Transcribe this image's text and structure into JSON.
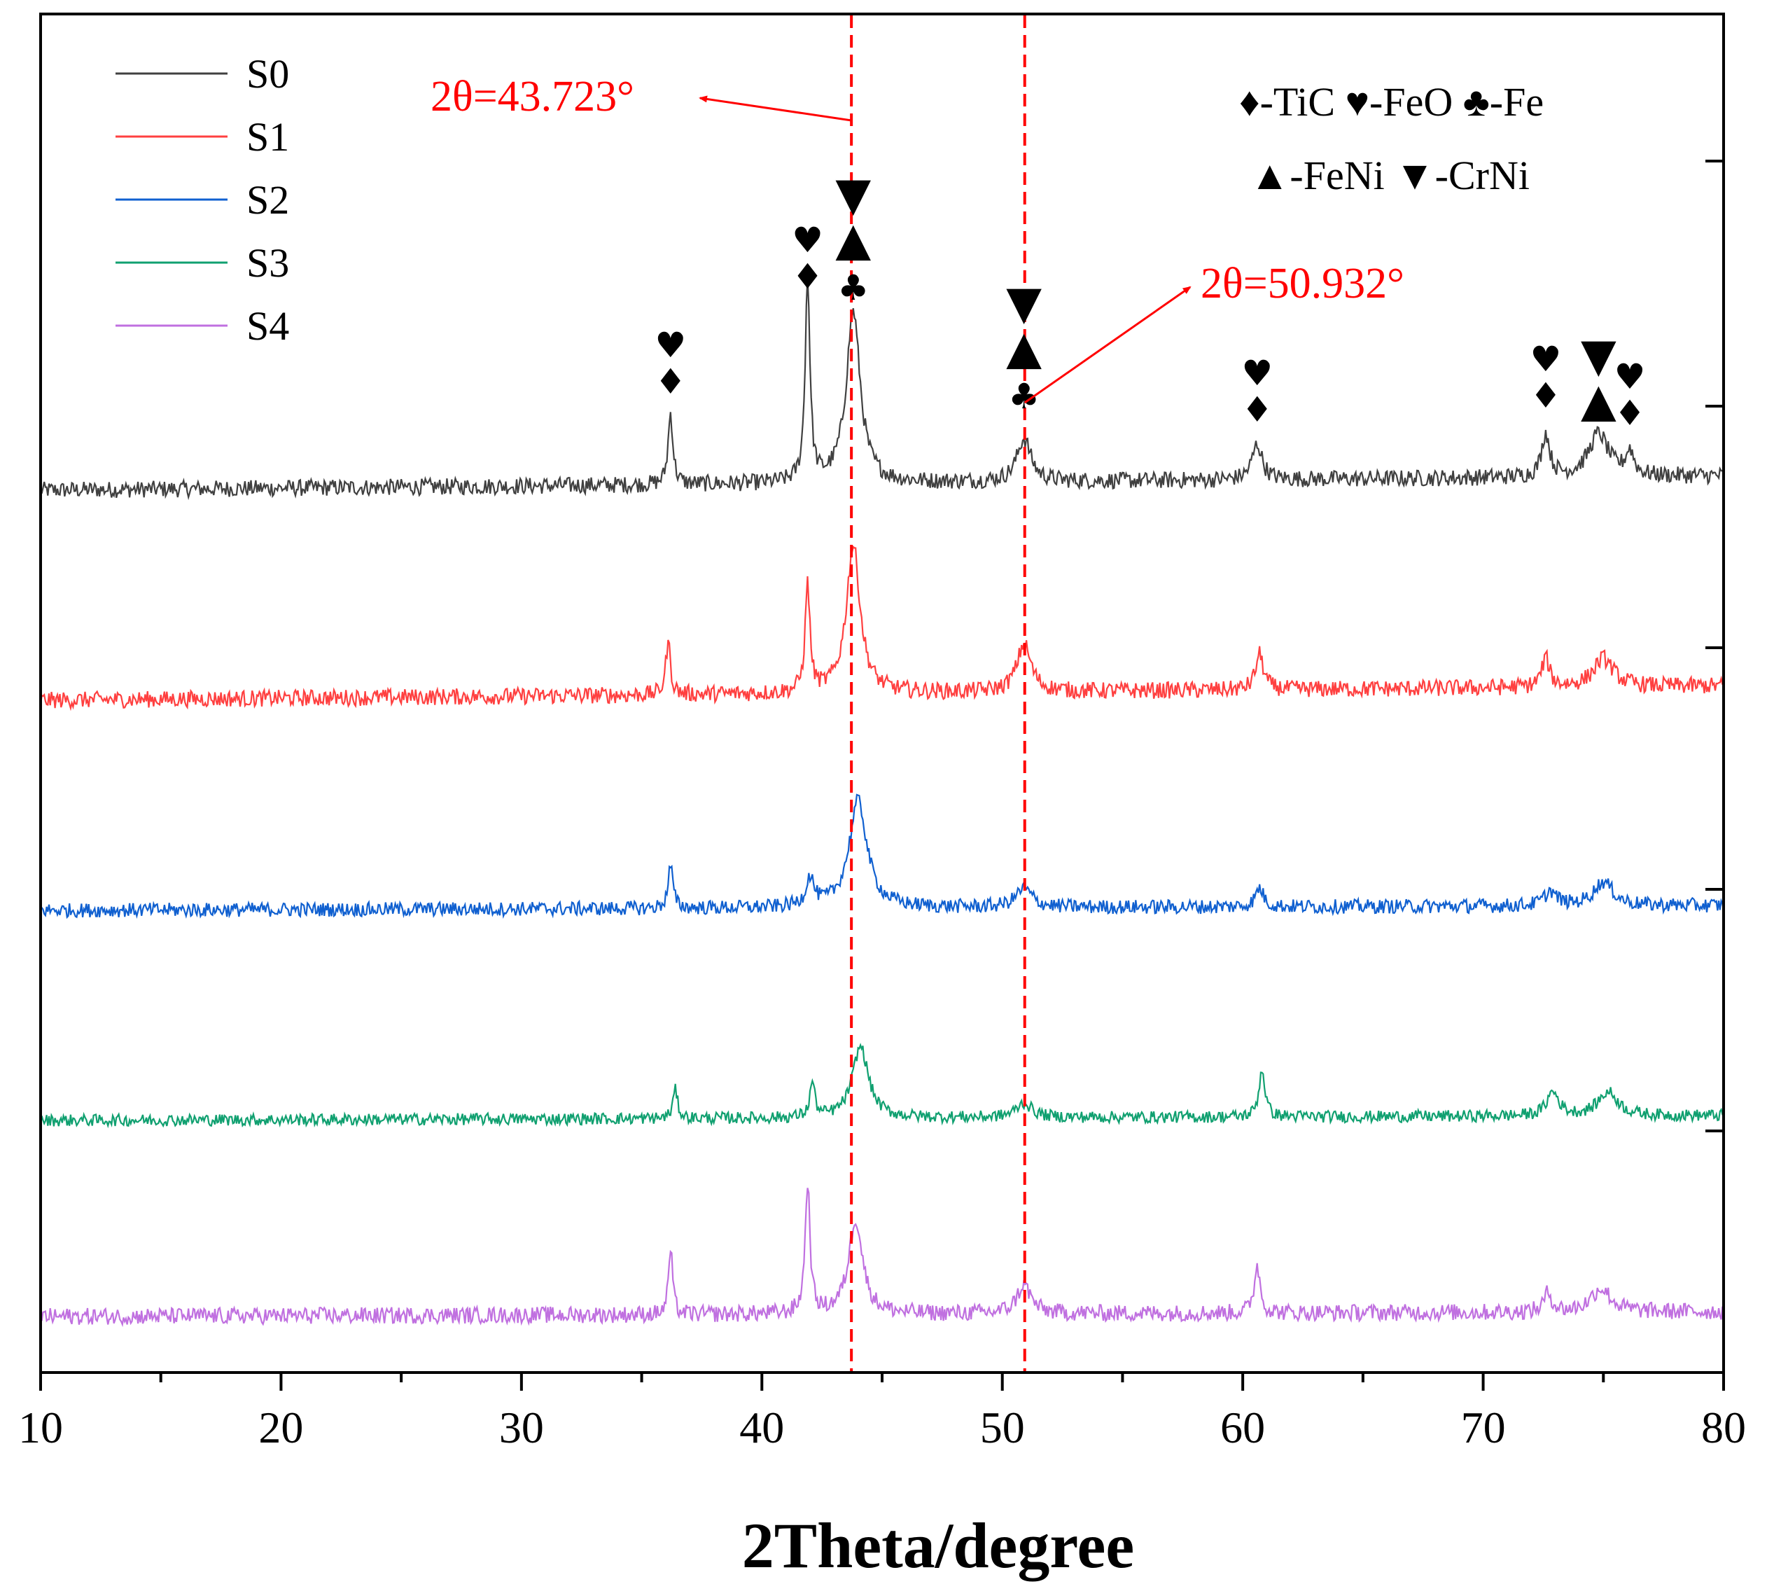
{
  "chart_data": {
    "type": "line",
    "title": "",
    "xlabel": "2Theta/degree",
    "ylabel": "",
    "xlim": [
      10,
      80
    ],
    "xticks": [
      "10",
      "20",
      "30",
      "40",
      "50",
      "60",
      "70",
      "80"
    ],
    "legend_position": "top-left",
    "series": [
      {
        "name": "S0",
        "color": "#404040",
        "baseline": 0.0,
        "noise": 0.035,
        "peaks": [
          [
            36.2,
            0.3,
            0.12
          ],
          [
            41.9,
            0.85,
            0.12
          ],
          [
            43.8,
            0.72,
            0.35
          ],
          [
            50.9,
            0.18,
            0.35
          ],
          [
            60.6,
            0.15,
            0.25
          ],
          [
            72.6,
            0.18,
            0.2
          ],
          [
            74.8,
            0.18,
            0.5
          ],
          [
            76.1,
            0.1,
            0.2
          ]
        ]
      },
      {
        "name": "S1",
        "color": "#ff4040",
        "baseline": 0.0,
        "noise": 0.035,
        "peaks": [
          [
            36.1,
            0.22,
            0.12
          ],
          [
            41.9,
            0.45,
            0.12
          ],
          [
            43.8,
            0.62,
            0.35
          ],
          [
            50.9,
            0.2,
            0.35
          ],
          [
            60.7,
            0.15,
            0.2
          ],
          [
            72.6,
            0.12,
            0.2
          ],
          [
            75.0,
            0.12,
            0.5
          ]
        ]
      },
      {
        "name": "S2",
        "color": "#1060d0",
        "baseline": 0.0,
        "noise": 0.03,
        "peaks": [
          [
            36.2,
            0.18,
            0.12
          ],
          [
            42.0,
            0.12,
            0.2
          ],
          [
            44.0,
            0.45,
            0.45
          ],
          [
            50.9,
            0.08,
            0.4
          ],
          [
            60.7,
            0.08,
            0.2
          ],
          [
            72.8,
            0.06,
            0.3
          ],
          [
            75.0,
            0.1,
            0.5
          ]
        ]
      },
      {
        "name": "S3",
        "color": "#10a070",
        "baseline": 0.0,
        "noise": 0.025,
        "peaks": [
          [
            36.4,
            0.12,
            0.12
          ],
          [
            42.1,
            0.15,
            0.12
          ],
          [
            44.1,
            0.3,
            0.4
          ],
          [
            50.9,
            0.06,
            0.4
          ],
          [
            60.8,
            0.2,
            0.15
          ],
          [
            72.9,
            0.1,
            0.3
          ],
          [
            75.2,
            0.1,
            0.5
          ]
        ]
      },
      {
        "name": "S4",
        "color": "#c070e0",
        "baseline": 0.0,
        "noise": 0.035,
        "peaks": [
          [
            36.2,
            0.28,
            0.1
          ],
          [
            41.9,
            0.55,
            0.12
          ],
          [
            43.9,
            0.4,
            0.35
          ],
          [
            50.9,
            0.12,
            0.35
          ],
          [
            60.6,
            0.2,
            0.15
          ],
          [
            72.7,
            0.08,
            0.2
          ],
          [
            74.9,
            0.1,
            0.5
          ]
        ]
      }
    ],
    "reference_lines": [
      43.723,
      50.932
    ],
    "annotations": [
      {
        "text": "2θ=43.723°",
        "x": 43.723
      },
      {
        "text": "2θ=50.932°",
        "x": 50.932
      }
    ],
    "phase_legend": {
      "row1": "♦-TiC  ♥-FeO  ♣-Fe",
      "row2": "▲-FeNi ▼-CrNi"
    },
    "peak_markers": [
      {
        "x": 36.2,
        "symbols": [
          "♥",
          "♦"
        ]
      },
      {
        "x": 41.9,
        "symbols": [
          "♥",
          "♦"
        ]
      },
      {
        "x": 43.8,
        "symbols": [
          "▼",
          "▲",
          "♣"
        ]
      },
      {
        "x": 50.9,
        "symbols": [
          "▼",
          "▲",
          "♣"
        ]
      },
      {
        "x": 60.6,
        "symbols": [
          "♥",
          "♦"
        ]
      },
      {
        "x": 72.6,
        "symbols": [
          "♥",
          "♦"
        ]
      },
      {
        "x": 74.8,
        "symbols": [
          "▼",
          "▲"
        ]
      },
      {
        "x": 76.1,
        "symbols": [
          "♥",
          "♦"
        ]
      }
    ]
  }
}
